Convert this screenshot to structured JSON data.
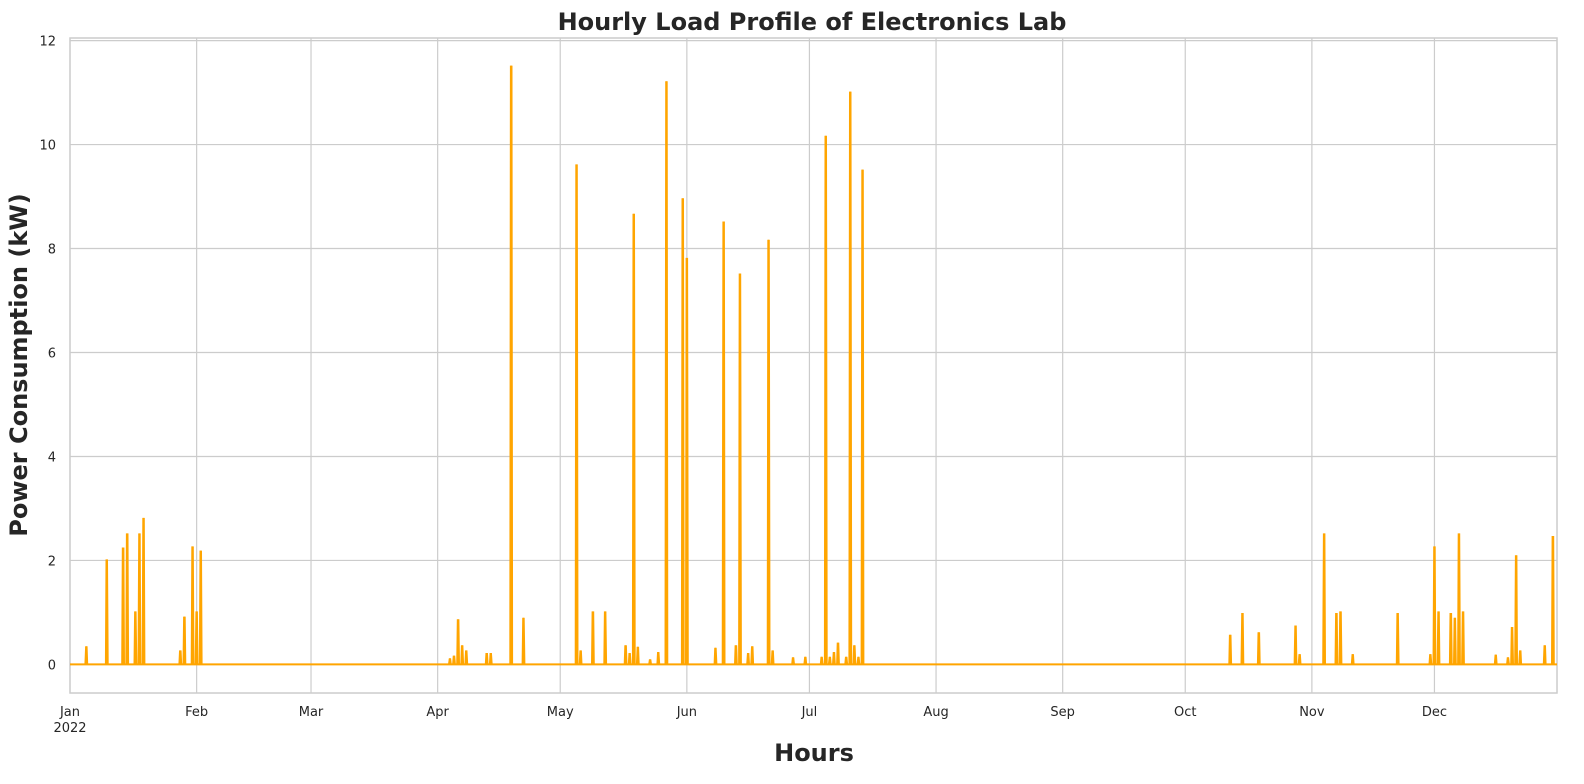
{
  "chart_data": {
    "type": "line",
    "title": "Hourly Load Profile of Electronics Lab",
    "xlabel": "Hours",
    "ylabel": "Power Consumption (kW)",
    "xlim": [
      "2022-01-01",
      "2022-12-31"
    ],
    "ylim": [
      -0.55,
      12.05
    ],
    "grid": true,
    "line_color": "#ffa500",
    "x_ticks": [
      {
        "date": "2022-01-01",
        "label": "Jan",
        "sublabel": "2022"
      },
      {
        "date": "2022-02-01",
        "label": "Feb"
      },
      {
        "date": "2022-03-01",
        "label": "Mar"
      },
      {
        "date": "2022-04-01",
        "label": "Apr"
      },
      {
        "date": "2022-05-01",
        "label": "May"
      },
      {
        "date": "2022-06-01",
        "label": "Jun"
      },
      {
        "date": "2022-07-01",
        "label": "Jul"
      },
      {
        "date": "2022-08-01",
        "label": "Aug"
      },
      {
        "date": "2022-09-01",
        "label": "Sep"
      },
      {
        "date": "2022-10-01",
        "label": "Oct"
      },
      {
        "date": "2022-11-01",
        "label": "Nov"
      },
      {
        "date": "2022-12-01",
        "label": "Dec"
      }
    ],
    "y_ticks": [
      0,
      2,
      4,
      6,
      8,
      10,
      12
    ],
    "series": [
      {
        "x": [
          "2022-01-05",
          "2022-01-10",
          "2022-01-14",
          "2022-01-15",
          "2022-01-17",
          "2022-01-18",
          "2022-01-19",
          "2022-01-28",
          "2022-01-29",
          "2022-01-31",
          "2022-02-01",
          "2022-02-02",
          "2022-04-04",
          "2022-04-05",
          "2022-04-06",
          "2022-04-07",
          "2022-04-08",
          "2022-04-13",
          "2022-04-14",
          "2022-04-19",
          "2022-04-22",
          "2022-05-05",
          "2022-05-06",
          "2022-05-09",
          "2022-05-12",
          "2022-05-17",
          "2022-05-18",
          "2022-05-19",
          "2022-05-20",
          "2022-05-23",
          "2022-05-25",
          "2022-05-27",
          "2022-05-31",
          "2022-06-01",
          "2022-06-08",
          "2022-06-10",
          "2022-06-13",
          "2022-06-14",
          "2022-06-16",
          "2022-06-17",
          "2022-06-21",
          "2022-06-22",
          "2022-06-27",
          "2022-06-30",
          "2022-07-04",
          "2022-07-05",
          "2022-07-06",
          "2022-07-07",
          "2022-07-08",
          "2022-07-10",
          "2022-07-11",
          "2022-07-12",
          "2022-07-13",
          "2022-07-14",
          "2022-10-12",
          "2022-10-15",
          "2022-10-19",
          "2022-10-28",
          "2022-10-29",
          "2022-11-04",
          "2022-11-07",
          "2022-11-08",
          "2022-11-11",
          "2022-11-22",
          "2022-11-30",
          "2022-12-01",
          "2022-12-02",
          "2022-12-05",
          "2022-12-06",
          "2022-12-07",
          "2022-12-08",
          "2022-12-16",
          "2022-12-19",
          "2022-12-20",
          "2022-12-21",
          "2022-12-22",
          "2022-12-28",
          "2022-12-30"
        ],
        "values": [
          0.33,
          2.0,
          2.23,
          2.5,
          1.0,
          2.5,
          2.8,
          0.25,
          0.9,
          2.25,
          1.0,
          2.17,
          0.1,
          0.15,
          0.85,
          0.35,
          0.25,
          0.2,
          0.2,
          11.5,
          0.88,
          9.6,
          0.25,
          1.0,
          1.0,
          0.35,
          0.2,
          8.65,
          0.32,
          0.08,
          0.22,
          11.2,
          8.95,
          7.8,
          0.3,
          8.5,
          0.35,
          7.5,
          0.2,
          0.33,
          8.15,
          0.25,
          0.12,
          0.13,
          0.13,
          10.15,
          0.13,
          0.22,
          0.4,
          0.13,
          11.0,
          0.35,
          0.13,
          9.5,
          0.55,
          0.97,
          0.6,
          0.73,
          0.18,
          2.5,
          0.97,
          1.0,
          0.18,
          0.97,
          0.18,
          2.25,
          1.0,
          0.97,
          0.88,
          2.5,
          1.0,
          0.17,
          0.12,
          0.7,
          2.08,
          0.25,
          0.35,
          2.45
        ]
      }
    ]
  }
}
